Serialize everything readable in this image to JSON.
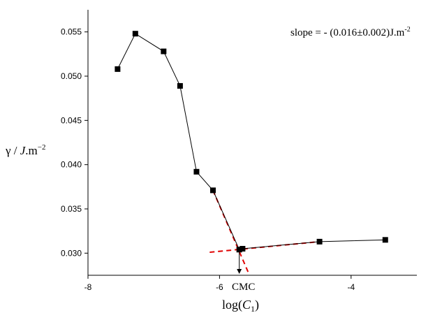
{
  "chart_data": {
    "type": "line",
    "xlabel_prefix": "log(",
    "xlabel_var": "C",
    "xlabel_sub": "1",
    "xlabel_suffix": ")",
    "ylabel_gamma": "γ / ",
    "ylabel_J": "J",
    "ylabel_unit": ".m",
    "ylabel_exp": "−2",
    "xlim": [
      -8,
      -3
    ],
    "ylim": [
      0.0275,
      0.0575
    ],
    "x_ticks": [
      -8,
      -6,
      -4
    ],
    "y_ticks": [
      0.03,
      0.035,
      0.04,
      0.045,
      0.05,
      0.055
    ],
    "series": [
      {
        "points": [
          {
            "x": -7.55,
            "y": 0.0508
          },
          {
            "x": -7.28,
            "y": 0.0548
          },
          {
            "x": -6.85,
            "y": 0.0528
          },
          {
            "x": -6.6,
            "y": 0.0489
          },
          {
            "x": -6.35,
            "y": 0.0392
          },
          {
            "x": -6.1,
            "y": 0.0371
          },
          {
            "x": -5.7,
            "y": 0.0304
          },
          {
            "x": -5.65,
            "y": 0.0305
          },
          {
            "x": -4.48,
            "y": 0.0313
          },
          {
            "x": -3.48,
            "y": 0.0315
          }
        ]
      }
    ],
    "fit_lines": [
      {
        "color": "#e00000",
        "x": [
          -6.1,
          -5.55
        ],
        "y": [
          0.0371,
          0.0276
        ]
      },
      {
        "color": "#e00000",
        "x": [
          -6.15,
          -4.48
        ],
        "y": [
          0.0301,
          0.0313
        ]
      }
    ],
    "cmc_label": "CMC",
    "cmc_x": -5.7,
    "annotation": {
      "text": "slope = - (0.016±0.002)J.m",
      "sup": "-2"
    },
    "colors": {
      "line": "#000000",
      "marker": "#000000",
      "fit": "#e00000"
    }
  }
}
